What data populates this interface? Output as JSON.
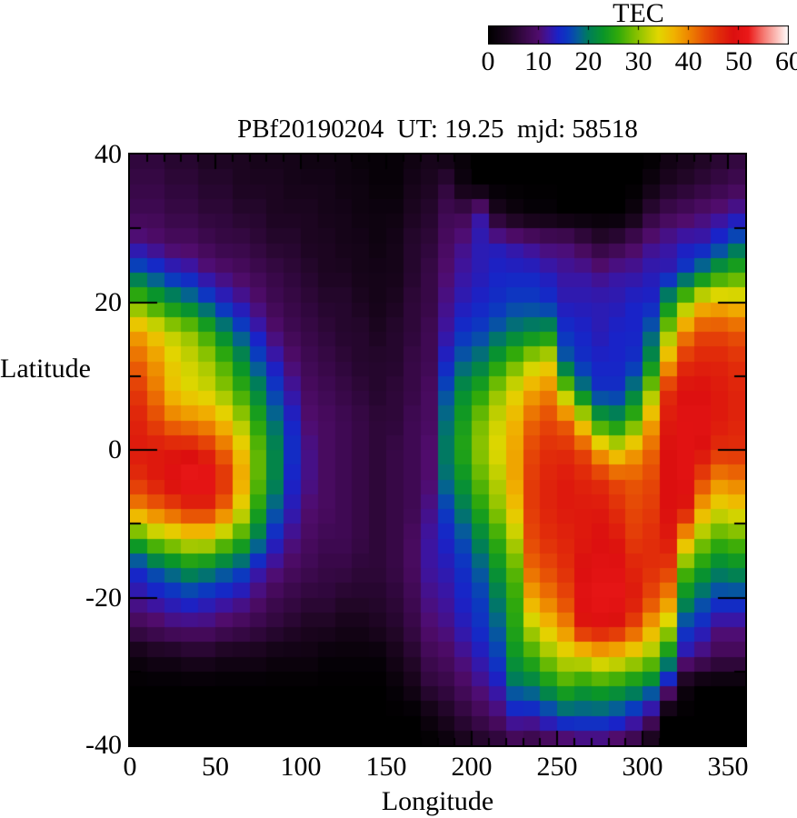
{
  "colorbar": {
    "label": "TEC",
    "tick_labels": [
      "0",
      "10",
      "20",
      "30",
      "40",
      "50",
      "60"
    ],
    "range": [
      0,
      60
    ]
  },
  "plot": {
    "title": "PBf20190204  UT: 19.25  mjd: 58518",
    "x_axis": {
      "label": "Longitude",
      "tick_labels": [
        "0",
        "50",
        "100",
        "150",
        "200",
        "250",
        "300",
        "350"
      ],
      "range": [
        0,
        360
      ],
      "major_tick_step": 50,
      "minor_tick_step": 10
    },
    "y_axis": {
      "label": "Latitude",
      "tick_labels": [
        "40",
        "20",
        "0",
        "-20",
        "-40"
      ],
      "range": [
        -40,
        40
      ],
      "major_tick_step": 20,
      "minor_tick_step": 10
    }
  },
  "chart_data": {
    "type": "heatmap",
    "title": "PBf20190204  UT: 19.25  mjd: 58518",
    "xlabel": "Longitude",
    "ylabel": "Latitude",
    "zlabel": "TEC",
    "xlim": [
      0,
      360
    ],
    "ylim": [
      -40,
      40
    ],
    "zlim": [
      0,
      60
    ],
    "grid": false,
    "legend_position": "top-right-colorbar",
    "lon_columns": [
      5,
      15,
      25,
      35,
      45,
      55,
      65,
      75,
      85,
      95,
      105,
      115,
      125,
      135,
      145,
      155,
      165,
      175,
      185,
      195,
      205,
      215,
      225,
      235,
      245,
      255,
      265,
      275,
      285,
      295,
      305,
      315,
      325,
      335,
      345,
      355
    ],
    "lat_rows": [
      40,
      36,
      32,
      28,
      24,
      20,
      16,
      12,
      8,
      4,
      0,
      -4,
      -8,
      -12,
      -16,
      -20,
      -24,
      -28,
      -32,
      -36,
      -40
    ],
    "tec_by_column": [
      [
        6,
        7,
        8,
        11,
        18,
        28,
        38,
        42,
        45,
        47,
        48,
        46,
        40,
        26,
        15,
        12,
        8,
        2,
        0,
        0,
        0
      ],
      [
        6,
        7,
        8,
        10,
        16,
        25,
        35,
        39,
        41,
        44,
        48,
        48,
        42,
        30,
        18,
        13,
        9,
        3,
        0,
        0,
        0
      ],
      [
        5,
        6,
        7,
        9,
        14,
        22,
        32,
        35,
        36,
        41,
        48,
        50,
        44,
        32,
        20,
        14,
        10,
        3,
        0,
        0,
        0
      ],
      [
        5,
        6,
        7,
        9,
        13,
        20,
        30,
        33,
        34,
        40,
        48,
        52,
        46,
        34,
        22,
        15,
        10,
        4,
        0,
        0,
        0
      ],
      [
        4,
        5,
        6,
        8,
        11,
        17,
        26,
        31,
        33,
        39,
        46,
        52,
        46,
        34,
        21,
        14,
        10,
        4,
        0,
        0,
        0
      ],
      [
        4,
        5,
        6,
        7,
        10,
        14,
        21,
        27,
        30,
        36,
        42,
        46,
        42,
        30,
        19,
        13,
        9,
        3,
        0,
        0,
        0
      ],
      [
        4,
        4,
        5,
        7,
        9,
        12,
        17,
        22,
        26,
        31,
        36,
        38,
        34,
        26,
        17,
        12,
        8,
        3,
        0,
        0,
        0
      ],
      [
        3,
        4,
        5,
        6,
        8,
        10,
        13,
        17,
        21,
        25,
        28,
        28,
        25,
        20,
        13,
        10,
        7,
        3,
        0,
        0,
        0
      ],
      [
        3,
        4,
        4,
        5,
        7,
        8,
        10,
        13,
        16,
        19,
        21,
        21,
        18,
        14,
        11,
        8,
        6,
        2,
        0,
        0,
        0
      ],
      [
        3,
        3,
        4,
        5,
        6,
        7,
        8,
        10,
        12,
        14,
        15,
        14,
        13,
        11,
        9,
        7,
        5,
        2,
        0,
        0,
        0
      ],
      [
        2,
        3,
        4,
        4,
        5,
        6,
        7,
        8,
        9,
        10,
        11,
        11,
        10,
        9,
        8,
        6,
        4,
        2,
        0,
        0,
        0
      ],
      [
        2,
        3,
        3,
        4,
        4,
        5,
        6,
        7,
        8,
        9,
        9,
        9,
        9,
        8,
        7,
        6,
        4,
        1,
        0,
        0,
        0
      ],
      [
        2,
        2,
        3,
        3,
        4,
        5,
        5,
        6,
        7,
        8,
        8,
        8,
        8,
        8,
        7,
        5,
        3,
        1,
        0,
        0,
        0
      ],
      [
        1,
        2,
        2,
        3,
        3,
        4,
        5,
        5,
        6,
        7,
        7,
        7,
        7,
        7,
        6,
        5,
        3,
        1,
        0,
        0,
        0
      ],
      [
        1,
        1,
        2,
        2,
        3,
        3,
        4,
        5,
        5,
        6,
        6,
        6,
        6,
        6,
        6,
        5,
        4,
        1,
        0,
        0,
        0
      ],
      [
        1,
        1,
        2,
        3,
        3,
        4,
        5,
        5,
        6,
        6,
        7,
        7,
        7,
        7,
        7,
        6,
        5,
        3,
        1,
        0,
        0
      ],
      [
        2,
        3,
        4,
        5,
        5,
        6,
        6,
        7,
        7,
        8,
        8,
        8,
        8,
        9,
        9,
        8,
        7,
        5,
        3,
        0,
        0
      ],
      [
        3,
        4,
        5,
        6,
        7,
        7,
        8,
        8,
        9,
        9,
        10,
        10,
        11,
        12,
        12,
        11,
        10,
        8,
        6,
        2,
        0
      ],
      [
        2,
        6,
        8,
        9,
        10,
        11,
        12,
        14,
        17,
        19,
        20,
        19,
        16,
        14,
        13,
        12,
        11,
        9,
        7,
        4,
        1
      ],
      [
        1,
        2,
        8,
        11,
        12,
        13,
        15,
        18,
        22,
        24,
        25,
        23,
        20,
        17,
        15,
        14,
        13,
        11,
        9,
        6,
        3
      ],
      [
        0,
        0,
        12,
        13,
        13,
        14,
        16,
        20,
        25,
        29,
        30,
        28,
        25,
        21,
        18,
        16,
        15,
        13,
        11,
        8,
        4
      ],
      [
        0,
        0,
        4,
        13,
        14,
        15,
        18,
        24,
        30,
        33,
        34,
        32,
        30,
        26,
        23,
        20,
        18,
        16,
        13,
        10,
        5
      ],
      [
        0,
        0,
        2,
        12,
        14,
        16,
        20,
        28,
        34,
        37,
        38,
        38,
        36,
        32,
        28,
        26,
        25,
        23,
        19,
        13,
        7
      ],
      [
        0,
        0,
        1,
        11,
        14,
        16,
        21,
        32,
        38,
        42,
        44,
        45,
        45,
        44,
        42,
        38,
        32,
        26,
        20,
        13,
        6
      ],
      [
        0,
        0,
        1,
        10,
        13,
        15,
        22,
        34,
        40,
        44,
        46,
        47,
        47,
        46,
        44,
        41,
        36,
        30,
        23,
        15,
        7
      ],
      [
        0,
        0,
        0,
        10,
        12,
        13,
        15,
        18,
        30,
        42,
        46,
        48,
        48,
        47,
        46,
        44,
        40,
        33,
        26,
        17,
        8
      ],
      [
        0,
        0,
        0,
        8,
        12,
        13,
        14,
        15,
        20,
        34,
        44,
        47,
        48,
        48,
        49,
        50,
        48,
        34,
        24,
        17,
        9
      ],
      [
        0,
        0,
        0,
        6,
        11,
        13,
        13,
        14,
        15,
        24,
        38,
        46,
        48,
        49,
        50,
        51,
        49,
        36,
        25,
        17,
        9
      ],
      [
        0,
        0,
        0,
        7,
        12,
        13,
        14,
        14,
        15,
        22,
        34,
        44,
        46,
        48,
        50,
        51,
        48,
        35,
        24,
        16,
        8
      ],
      [
        0,
        0,
        2,
        9,
        12,
        14,
        14,
        15,
        20,
        27,
        38,
        43,
        44,
        45,
        47,
        48,
        44,
        33,
        22,
        14,
        6
      ],
      [
        0,
        2,
        6,
        11,
        13,
        14,
        18,
        22,
        30,
        38,
        42,
        44,
        45,
        46,
        46,
        44,
        38,
        30,
        20,
        10,
        2
      ],
      [
        2,
        4,
        8,
        12,
        13,
        22,
        30,
        38,
        46,
        48,
        49,
        49,
        49,
        48,
        45,
        40,
        32,
        22,
        12,
        0,
        0
      ],
      [
        3,
        5,
        9,
        13,
        16,
        30,
        40,
        46,
        49,
        50,
        50,
        50,
        48,
        38,
        28,
        22,
        16,
        12,
        2,
        0,
        0
      ],
      [
        4,
        6,
        10,
        13,
        20,
        36,
        44,
        47,
        49,
        50,
        49,
        44,
        38,
        30,
        24,
        18,
        14,
        10,
        0,
        0,
        0
      ],
      [
        5,
        7,
        11,
        15,
        24,
        37,
        44,
        47,
        48,
        48,
        46,
        40,
        34,
        27,
        21,
        16,
        11,
        8,
        0,
        0,
        0
      ],
      [
        6,
        8,
        12,
        18,
        26,
        36,
        43,
        46,
        47,
        47,
        46,
        41,
        35,
        28,
        22,
        16,
        11,
        8,
        0,
        0,
        0
      ]
    ],
    "colormap_stops": [
      [
        0,
        "#000000"
      ],
      [
        4,
        "#1c0520"
      ],
      [
        7,
        "#370846"
      ],
      [
        10,
        "#500c6c"
      ],
      [
        12,
        "#3c14a0"
      ],
      [
        14,
        "#1923c8"
      ],
      [
        16,
        "#0a3cbe"
      ],
      [
        18,
        "#055f96"
      ],
      [
        20,
        "#007d5a"
      ],
      [
        23,
        "#0a9628"
      ],
      [
        26,
        "#32aa0a"
      ],
      [
        29,
        "#78be00"
      ],
      [
        32,
        "#b9cd00"
      ],
      [
        34,
        "#e1d700"
      ],
      [
        37,
        "#f0b400"
      ],
      [
        40,
        "#ee8700"
      ],
      [
        43,
        "#e85505"
      ],
      [
        46,
        "#e12d0a"
      ],
      [
        49,
        "#dc0f0f"
      ],
      [
        52,
        "#eb1919"
      ],
      [
        55,
        "#f57870"
      ],
      [
        58,
        "#fcc8c3"
      ],
      [
        60,
        "#ffffff"
      ]
    ]
  }
}
